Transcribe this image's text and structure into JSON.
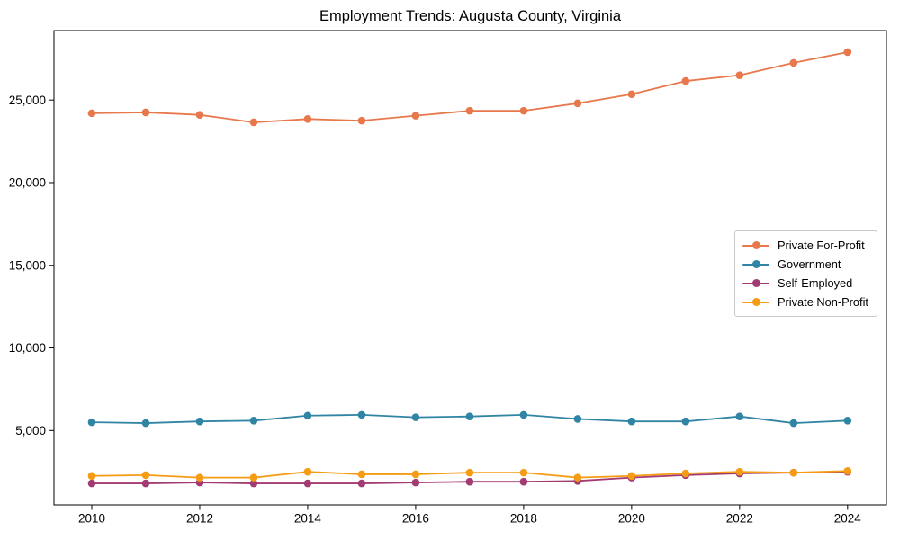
{
  "chart_data": {
    "type": "line",
    "title": "Employment Trends: Augusta County, Virginia",
    "xlabel": "",
    "ylabel": "",
    "x": [
      2010,
      2011,
      2012,
      2013,
      2014,
      2015,
      2016,
      2017,
      2018,
      2019,
      2020,
      2021,
      2022,
      2023,
      2024
    ],
    "series": [
      {
        "name": "Private For-Profit",
        "color": "#E8784B",
        "values": [
          24200,
          24250,
          24100,
          23650,
          23850,
          23750,
          24050,
          24350,
          24350,
          24800,
          25350,
          26150,
          26500,
          27250,
          27900
        ]
      },
      {
        "name": "Government",
        "color": "#3185A4",
        "values": [
          5500,
          5450,
          5550,
          5600,
          5900,
          5950,
          5800,
          5850,
          5950,
          5700,
          5550,
          5550,
          5850,
          5450,
          5600
        ]
      },
      {
        "name": "Self-Employed",
        "color": "#A23B72",
        "values": [
          1800,
          1800,
          1850,
          1800,
          1800,
          1800,
          1850,
          1900,
          1900,
          1950,
          2150,
          2300,
          2400,
          2450,
          2500
        ]
      },
      {
        "name": "Private Non-Profit",
        "color": "#F59C14",
        "values": [
          2250,
          2300,
          2150,
          2150,
          2500,
          2350,
          2350,
          2450,
          2450,
          2150,
          2250,
          2400,
          2500,
          2450,
          2550
        ]
      }
    ],
    "xticks": [
      2010,
      2012,
      2014,
      2016,
      2018,
      2020,
      2022,
      2024
    ],
    "xtick_labels": [
      "2010",
      "2012",
      "2014",
      "2016",
      "2018",
      "2020",
      "2022",
      "2024"
    ],
    "yticks": [
      5000,
      10000,
      15000,
      20000,
      25000
    ],
    "ytick_labels": [
      "5,000",
      "10,000",
      "15,000",
      "20,000",
      "25,000"
    ],
    "xlim": [
      2009.3,
      2024.72
    ],
    "ylim": [
      495,
      29205
    ],
    "grid": false,
    "legend_position": "center right",
    "axis_color": "#000000"
  }
}
